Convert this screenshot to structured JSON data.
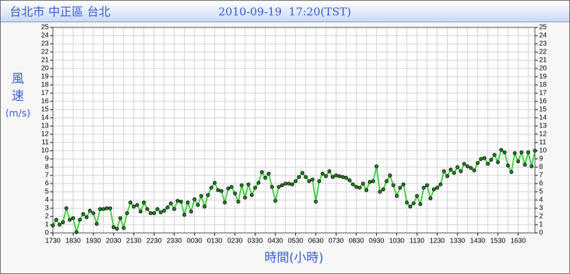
{
  "chart_data": {
    "type": "line",
    "title": "台北市 中正區 台北",
    "subtitle": "2010-09-19  17:20(TST)",
    "ylabel": [
      "風",
      "速",
      "(m/s)"
    ],
    "xlabel": "時間(小時)",
    "categories": [
      "1730",
      null,
      null,
      null,
      null,
      null,
      "1830",
      null,
      null,
      null,
      null,
      null,
      "1930",
      null,
      null,
      null,
      null,
      null,
      "2030",
      null,
      null,
      null,
      null,
      null,
      "2130",
      null,
      null,
      null,
      null,
      null,
      "2230",
      null,
      null,
      null,
      null,
      null,
      "2330",
      null,
      null,
      null,
      null,
      null,
      "0030",
      null,
      null,
      null,
      null,
      null,
      "0130",
      null,
      null,
      null,
      null,
      null,
      "0230",
      null,
      null,
      null,
      null,
      null,
      "0330",
      null,
      null,
      null,
      null,
      null,
      "0430",
      null,
      null,
      null,
      null,
      null,
      "0530",
      null,
      null,
      null,
      null,
      null,
      "0630",
      null,
      null,
      null,
      null,
      null,
      "0730",
      null,
      null,
      null,
      null,
      null,
      "0830",
      null,
      null,
      null,
      null,
      null,
      "0930",
      null,
      null,
      null,
      null,
      null,
      "1030",
      null,
      null,
      null,
      null,
      null,
      "1130",
      null,
      null,
      null,
      null,
      null,
      "1230",
      null,
      null,
      null,
      null,
      null,
      "1330",
      null,
      null,
      null,
      null,
      null,
      "1430",
      null,
      null,
      null,
      null,
      null,
      "1530",
      null,
      null,
      null,
      null,
      null,
      "1630",
      null,
      null,
      null,
      null,
      null
    ],
    "values": [
      0.9,
      1.6,
      1.0,
      1.3,
      3.0,
      1.6,
      1.8,
      0.1,
      1.6,
      2.3,
      1.9,
      2.7,
      2.4,
      1.1,
      2.9,
      2.9,
      3.0,
      3.0,
      0.7,
      0.5,
      1.8,
      0.6,
      2.4,
      3.7,
      3.2,
      3.4,
      2.6,
      3.7,
      2.9,
      2.4,
      2.4,
      2.9,
      2.5,
      2.7,
      3.1,
      3.6,
      2.9,
      3.9,
      3.8,
      2.2,
      3.7,
      2.6,
      4.1,
      3.4,
      4.5,
      3.2,
      4.6,
      5.5,
      6.1,
      5.2,
      5.1,
      3.7,
      5.4,
      5.6,
      4.8,
      3.8,
      5.8,
      4.3,
      5.9,
      4.6,
      5.5,
      6.1,
      7.4,
      6.7,
      7.2,
      5.6,
      3.9,
      5.6,
      5.8,
      6.0,
      6.0,
      5.9,
      6.3,
      6.8,
      7.3,
      6.8,
      6.3,
      6.5,
      3.8,
      6.3,
      7.2,
      6.9,
      7.5,
      6.8,
      7.0,
      6.9,
      6.8,
      6.7,
      6.4,
      5.9,
      5.6,
      5.5,
      6.0,
      5.2,
      6.2,
      6.3,
      8.1,
      5.0,
      5.3,
      6.3,
      7.0,
      5.8,
      4.5,
      5.5,
      5.9,
      3.7,
      3.2,
      3.6,
      4.5,
      3.5,
      5.5,
      5.8,
      4.2,
      5.3,
      5.5,
      5.9,
      7.5,
      6.9,
      7.7,
      7.3,
      8.0,
      7.5,
      8.4,
      8.1,
      7.9,
      7.6,
      8.5,
      9.0,
      9.1,
      8.4,
      8.9,
      9.5,
      8.6,
      10.1,
      9.8,
      8.2,
      7.4,
      9.7,
      8.7,
      9.8,
      8.3,
      9.8,
      8.1,
      10.0
    ],
    "color": "#3fcf3f",
    "marker_color": "#2a7a2a",
    "ylim": [
      0,
      25
    ],
    "yticks": [
      0,
      1,
      2,
      3,
      4,
      5,
      6,
      7,
      8,
      9,
      10,
      11,
      12,
      13,
      14,
      15,
      16,
      17,
      18,
      19,
      20,
      21,
      22,
      23,
      24,
      25
    ],
    "grid": true
  }
}
